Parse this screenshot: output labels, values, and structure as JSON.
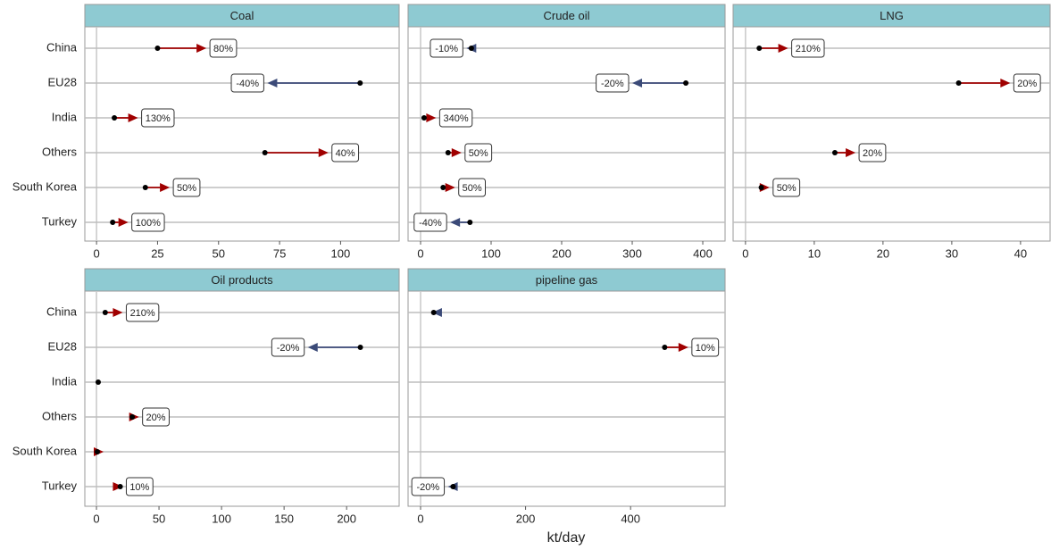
{
  "x_label": "kt/day",
  "categories": [
    "China",
    "EU28",
    "India",
    "Others",
    "South Korea",
    "Turkey"
  ],
  "chart_data": [
    {
      "type": "arrow",
      "title": "Coal",
      "xlim": [
        -4.8,
        124
      ],
      "xticks": [
        0,
        25,
        50,
        75,
        100
      ],
      "start": [
        25,
        108,
        7.3,
        69,
        20,
        6.6
      ],
      "end": [
        45,
        70,
        17,
        95,
        30,
        13
      ],
      "change_labels": [
        "80%",
        "-40%",
        "130%",
        "40%",
        "50%",
        "100%"
      ],
      "up_color": "#a00000",
      "down_color": "#3b4a78"
    },
    {
      "type": "arrow",
      "title": "Crude oil",
      "xlim": [
        -17.7,
        431.6
      ],
      "xticks": [
        0,
        100,
        200,
        300,
        400
      ],
      "start": [
        72,
        376,
        5,
        39,
        32,
        70
      ],
      "end": [
        65,
        300,
        22,
        58,
        49,
        42
      ],
      "change_labels": [
        "-10%",
        "-20%",
        "340%",
        "50%",
        "50%",
        "-40%"
      ],
      "up_color": "#a00000",
      "down_color": "#3b4a78"
    },
    {
      "type": "arrow",
      "title": "LNG",
      "xlim": [
        -1.8,
        44.3
      ],
      "xticks": [
        0,
        10,
        20,
        30,
        40
      ],
      "start": [
        2,
        31,
        null,
        13,
        2.3,
        null
      ],
      "end": [
        6.2,
        38.5,
        null,
        16,
        3.5,
        null
      ],
      "change_labels": [
        "210%",
        "20%",
        null,
        "20%",
        "50%",
        null
      ],
      "up_color": "#a00000",
      "down_color": "#3b4a78"
    },
    {
      "type": "arrow",
      "title": "Oil products",
      "xlim": [
        -9.3,
        242
      ],
      "xticks": [
        0,
        50,
        100,
        150,
        200
      ],
      "start": [
        7,
        211,
        1.4,
        28.6,
        0.7,
        19
      ],
      "end": [
        21,
        169,
        1.4,
        34,
        5.7,
        21
      ],
      "change_labels": [
        "210%",
        "-20%",
        null,
        "20%",
        null,
        "10%"
      ],
      "up_color": "#a00000",
      "down_color": "#3b4a78"
    },
    {
      "type": "arrow",
      "title": "pipeline gas",
      "xlim": [
        -23.8,
        580
      ],
      "xticks": [
        0,
        200,
        400
      ],
      "start": [
        25,
        465,
        null,
        null,
        null,
        62
      ],
      "end": [
        22,
        510,
        null,
        null,
        null,
        52
      ],
      "change_labels": [
        null,
        "10%",
        null,
        null,
        null,
        "-20%"
      ],
      "up_color": "#a00000",
      "down_color": "#3b4a78"
    }
  ]
}
